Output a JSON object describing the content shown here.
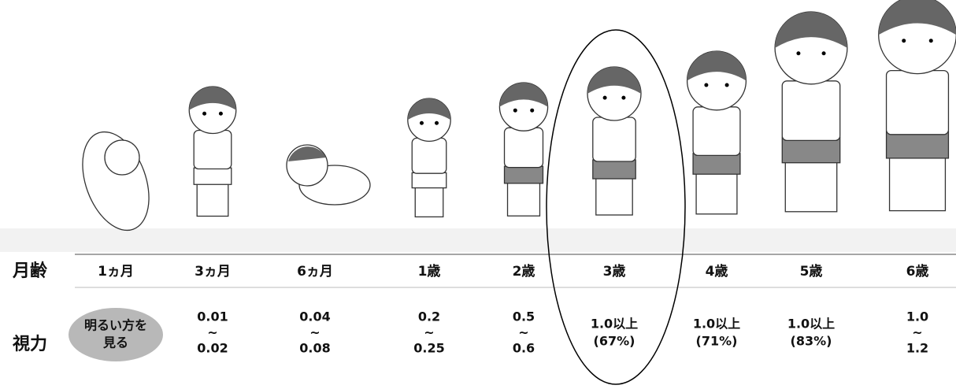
{
  "row_labels": {
    "age": "月齢",
    "vision": "視力"
  },
  "columns": [
    {
      "age": "1ヵ月",
      "vision": [
        "明るい方を",
        "見る"
      ]
    },
    {
      "age": "3ヵ月",
      "vision": [
        "0.01",
        "~",
        "0.02"
      ]
    },
    {
      "age": "6ヵ月",
      "vision": [
        "0.04",
        "~",
        "0.08"
      ]
    },
    {
      "age": "1歳",
      "vision": [
        "0.2",
        "~",
        "0.25"
      ]
    },
    {
      "age": "2歳",
      "vision": [
        "0.5",
        "~",
        "0.6"
      ]
    },
    {
      "age": "3歳",
      "vision": [
        "1.0以上",
        "(67%)"
      ]
    },
    {
      "age": "4歳",
      "vision": [
        "1.0以上",
        "(71%)"
      ]
    },
    {
      "age": "5歳",
      "vision": [
        "1.0以上",
        "(83%)"
      ]
    },
    {
      "age": "6歳",
      "vision": [
        "1.0",
        "~",
        "1.2"
      ]
    }
  ]
}
